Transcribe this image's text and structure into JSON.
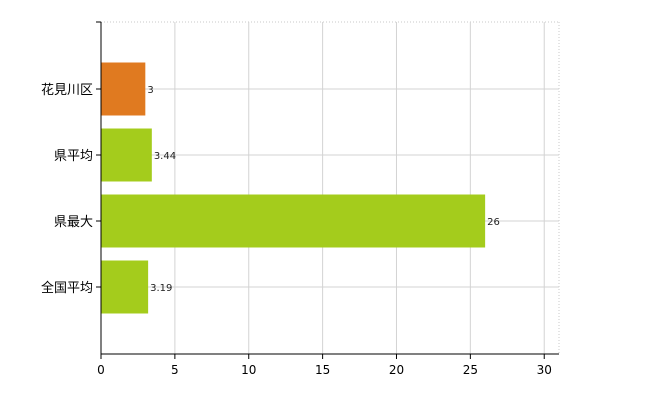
{
  "chart_data": {
    "type": "bar",
    "orientation": "horizontal",
    "categories": [
      "花見川区",
      "県平均",
      "県最大",
      "全国平均"
    ],
    "values": [
      3,
      3.44,
      26,
      3.19
    ],
    "value_labels": [
      "3",
      "3.44",
      "26",
      "3.19"
    ],
    "bar_colors": [
      "#e07a20",
      "#a4cc1c",
      "#a4cc1c",
      "#a4cc1c"
    ],
    "highlight_color": "#e07a20",
    "bar_color": "#a4cc1c",
    "xlim": [
      0,
      31
    ],
    "xticks": [
      0,
      5,
      10,
      15,
      20,
      25,
      30
    ],
    "xtick_labels": [
      "0",
      "5",
      "10",
      "15",
      "20",
      "25",
      "30"
    ],
    "grid": true,
    "title": "",
    "xlabel": "",
    "ylabel": ""
  }
}
